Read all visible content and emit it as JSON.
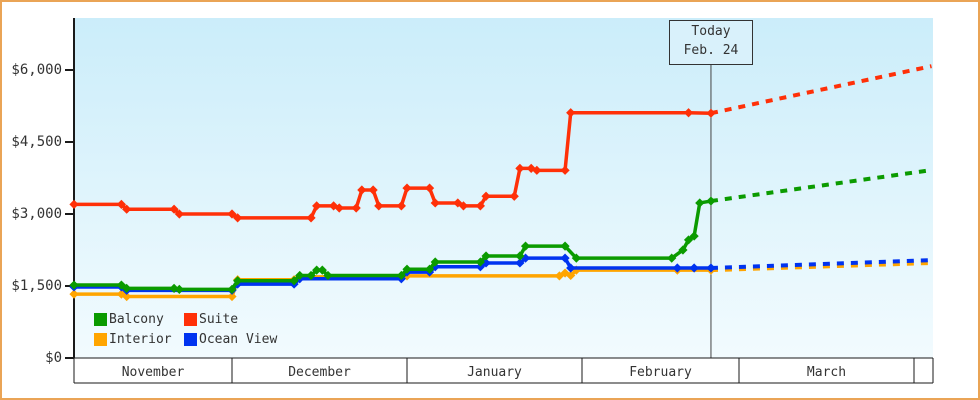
{
  "colors": {
    "frame_border": "#eaa456",
    "plot_bg_top": "#cbedfa",
    "plot_bg_bottom": "#f2fbfe",
    "axis": "#1a1a1a",
    "text": "#333333",
    "today_line": "#444444",
    "today_box_bg": "#d9f1fb"
  },
  "chart_data": {
    "type": "line",
    "title": "",
    "ylim": [
      0,
      6250
    ],
    "grid": false,
    "legend_position": "bottom-left",
    "y_axis": {
      "ticks": [
        {
          "value": 0,
          "label": "$0"
        },
        {
          "value": 1500,
          "label": "$1,500"
        },
        {
          "value": 3000,
          "label": "$3,000"
        },
        {
          "value": 4500,
          "label": "$4,500"
        },
        {
          "value": 6000,
          "label": "$6,000"
        }
      ]
    },
    "x_axis": {
      "months": [
        {
          "key": "Nov",
          "label": "November"
        },
        {
          "key": "Dec",
          "label": "December"
        },
        {
          "key": "Jan",
          "label": "January"
        },
        {
          "key": "Feb",
          "label": "February"
        },
        {
          "key": "Mar",
          "label": "March"
        }
      ]
    },
    "today": {
      "month": "Feb",
      "day": 24,
      "label_line1": "Today",
      "label_line2": "Feb. 24"
    },
    "series": [
      {
        "name": "Balcony",
        "color": "#0b9b00",
        "points": [
          [
            "Nov",
            1,
            1520
          ],
          [
            "Nov",
            10,
            1520
          ],
          [
            "Nov",
            11,
            1450
          ],
          [
            "Nov",
            20,
            1450
          ],
          [
            "Nov",
            21,
            1430
          ],
          [
            "Dec",
            1,
            1430
          ],
          [
            "Dec",
            2,
            1610
          ],
          [
            "Dec",
            12,
            1610
          ],
          [
            "Dec",
            13,
            1720
          ],
          [
            "Dec",
            15,
            1720
          ],
          [
            "Dec",
            16,
            1830
          ],
          [
            "Dec",
            17,
            1830
          ],
          [
            "Dec",
            18,
            1720
          ],
          [
            "Dec",
            31,
            1720
          ],
          [
            "Jan",
            1,
            1850
          ],
          [
            "Jan",
            5,
            1850
          ],
          [
            "Jan",
            6,
            2000
          ],
          [
            "Jan",
            14,
            2000
          ],
          [
            "Jan",
            15,
            2125
          ],
          [
            "Jan",
            21,
            2125
          ],
          [
            "Jan",
            22,
            2330
          ],
          [
            "Jan",
            29,
            2330
          ],
          [
            "Jan",
            31,
            2080
          ],
          [
            "Feb",
            17,
            2080
          ],
          [
            "Feb",
            19,
            2250
          ],
          [
            "Feb",
            20,
            2460
          ],
          [
            "Feb",
            21,
            2540
          ],
          [
            "Feb",
            22,
            3230
          ],
          [
            "Feb",
            24,
            3270
          ]
        ],
        "projection": [
          [
            "Feb",
            24,
            3270
          ],
          [
            "Apr",
            4,
            3915
          ]
        ]
      },
      {
        "name": "Suite",
        "color": "#ff3008",
        "points": [
          [
            "Nov",
            1,
            3200
          ],
          [
            "Nov",
            10,
            3200
          ],
          [
            "Nov",
            11,
            3100
          ],
          [
            "Nov",
            20,
            3100
          ],
          [
            "Nov",
            21,
            3000
          ],
          [
            "Dec",
            1,
            3000
          ],
          [
            "Dec",
            2,
            2920
          ],
          [
            "Dec",
            15,
            2920
          ],
          [
            "Dec",
            16,
            3170
          ],
          [
            "Dec",
            19,
            3170
          ],
          [
            "Dec",
            20,
            3125
          ],
          [
            "Dec",
            23,
            3125
          ],
          [
            "Dec",
            24,
            3500
          ],
          [
            "Dec",
            26,
            3500
          ],
          [
            "Dec",
            27,
            3170
          ],
          [
            "Dec",
            31,
            3170
          ],
          [
            "Jan",
            1,
            3540
          ],
          [
            "Jan",
            5,
            3540
          ],
          [
            "Jan",
            6,
            3230
          ],
          [
            "Jan",
            10,
            3230
          ],
          [
            "Jan",
            11,
            3170
          ],
          [
            "Jan",
            14,
            3170
          ],
          [
            "Jan",
            15,
            3370
          ],
          [
            "Jan",
            20,
            3370
          ],
          [
            "Jan",
            21,
            3950
          ],
          [
            "Jan",
            23,
            3950
          ],
          [
            "Jan",
            24,
            3910
          ],
          [
            "Jan",
            29,
            3910
          ],
          [
            "Jan",
            30,
            5110
          ],
          [
            "Feb",
            20,
            5110
          ],
          [
            "Feb",
            24,
            5100
          ]
        ],
        "projection": [
          [
            "Feb",
            24,
            5100
          ],
          [
            "Apr",
            4,
            6080
          ]
        ]
      },
      {
        "name": "Interior",
        "color": "#ffa500",
        "points": [
          [
            "Nov",
            1,
            1330
          ],
          [
            "Nov",
            10,
            1330
          ],
          [
            "Nov",
            11,
            1280
          ],
          [
            "Dec",
            1,
            1280
          ],
          [
            "Dec",
            2,
            1630
          ],
          [
            "Dec",
            12,
            1630
          ],
          [
            "Dec",
            13,
            1690
          ],
          [
            "Dec",
            31,
            1690
          ],
          [
            "Jan",
            1,
            1710
          ],
          [
            "Jan",
            28,
            1710
          ],
          [
            "Jan",
            29,
            1770
          ],
          [
            "Jan",
            30,
            1720
          ],
          [
            "Jan",
            31,
            1830
          ],
          [
            "Feb",
            18,
            1830
          ],
          [
            "Feb",
            24,
            1830
          ]
        ],
        "projection": [
          [
            "Feb",
            24,
            1830
          ],
          [
            "Apr",
            4,
            1980
          ]
        ]
      },
      {
        "name": "Ocean View",
        "color": "#0033f0",
        "points": [
          [
            "Nov",
            1,
            1480
          ],
          [
            "Nov",
            10,
            1480
          ],
          [
            "Nov",
            11,
            1410
          ],
          [
            "Dec",
            1,
            1410
          ],
          [
            "Dec",
            2,
            1540
          ],
          [
            "Dec",
            12,
            1540
          ],
          [
            "Dec",
            13,
            1650
          ],
          [
            "Dec",
            31,
            1650
          ],
          [
            "Jan",
            1,
            1790
          ],
          [
            "Jan",
            5,
            1790
          ],
          [
            "Jan",
            6,
            1900
          ],
          [
            "Jan",
            14,
            1900
          ],
          [
            "Jan",
            15,
            1980
          ],
          [
            "Jan",
            21,
            1980
          ],
          [
            "Jan",
            22,
            2080
          ],
          [
            "Jan",
            29,
            2080
          ],
          [
            "Jan",
            30,
            1875
          ],
          [
            "Feb",
            18,
            1875
          ],
          [
            "Feb",
            21,
            1875
          ],
          [
            "Feb",
            24,
            1875
          ]
        ],
        "projection": [
          [
            "Feb",
            24,
            1875
          ],
          [
            "Apr",
            4,
            2040
          ]
        ]
      }
    ]
  }
}
